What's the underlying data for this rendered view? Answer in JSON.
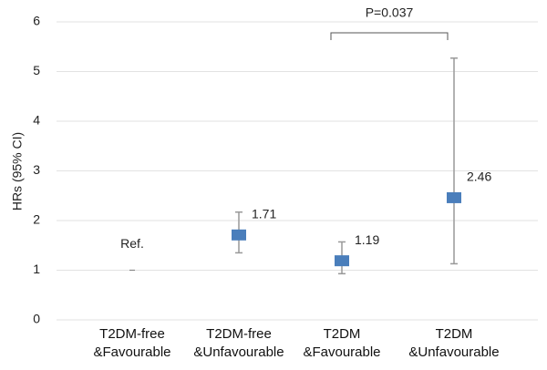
{
  "chart_data": {
    "type": "errorbar",
    "y_label": "HRs (95% CI)",
    "categories": [
      "T2DM-free\n&Favourable",
      "T2DM-free\n&Unfavourable",
      "T2DM\n&Favourable",
      "T2DM\n&Unfavourable"
    ],
    "values": [
      1,
      1.71,
      1.19,
      2.46
    ],
    "ci_low": [
      null,
      1.35,
      0.93,
      1.13
    ],
    "ci_high": [
      null,
      2.17,
      1.57,
      5.27
    ],
    "color": "#4a7ebb",
    "reference_label": "Ref.",
    "p_value_label": "P=0.037",
    "ylim": [
      0,
      6
    ],
    "yticks": [
      0,
      1,
      2,
      3,
      4,
      5,
      6
    ],
    "grid": true
  }
}
